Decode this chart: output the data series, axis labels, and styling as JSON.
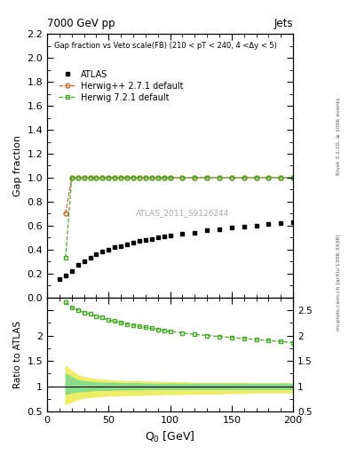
{
  "title_left": "7000 GeV pp",
  "title_right": "Jets",
  "main_title": "Gap fraction vs Veto scale(FB) (210 < pT < 240, 4 <Δy < 5)",
  "xlabel": "Q$_0$ [GeV]",
  "ylabel_main": "Gap fraction",
  "ylabel_ratio": "Ratio to ATLAS",
  "right_label_top": "Rivet 3.1.10, ≥ 100k events",
  "right_label_bottom": "mcplots.cern.ch [arXiv:1306.3436]",
  "watermark": "ATLAS_2011_S9126244",
  "xlim": [
    0,
    200
  ],
  "ylim_main": [
    0,
    2.2
  ],
  "ylim_ratio": [
    0.5,
    2.75
  ],
  "atlas_x": [
    10,
    15,
    20,
    25,
    30,
    35,
    40,
    45,
    50,
    55,
    60,
    65,
    70,
    75,
    80,
    85,
    90,
    95,
    100,
    110,
    120,
    130,
    140,
    150,
    160,
    170,
    180,
    190,
    200
  ],
  "atlas_y": [
    0.15,
    0.18,
    0.22,
    0.27,
    0.3,
    0.33,
    0.36,
    0.38,
    0.4,
    0.42,
    0.43,
    0.44,
    0.46,
    0.47,
    0.48,
    0.49,
    0.5,
    0.51,
    0.52,
    0.53,
    0.54,
    0.56,
    0.57,
    0.58,
    0.59,
    0.6,
    0.61,
    0.62,
    0.63
  ],
  "herwig_pp_x": [
    15,
    20,
    25,
    30,
    35,
    40,
    45,
    50,
    55,
    60,
    65,
    70,
    75,
    80,
    85,
    90,
    95,
    100,
    110,
    120,
    130,
    140,
    150,
    160,
    170,
    180,
    190,
    200
  ],
  "herwig_pp_y": [
    0.7,
    1.0,
    1.0,
    1.0,
    1.0,
    1.0,
    1.0,
    1.0,
    1.0,
    1.0,
    1.0,
    1.0,
    1.0,
    1.0,
    1.0,
    1.0,
    1.0,
    1.0,
    1.0,
    1.0,
    1.0,
    1.0,
    1.0,
    1.0,
    1.0,
    1.0,
    1.0,
    1.0
  ],
  "herwig7_x": [
    15,
    20,
    25,
    30,
    35,
    40,
    45,
    50,
    55,
    60,
    65,
    70,
    75,
    80,
    85,
    90,
    95,
    100,
    110,
    120,
    130,
    140,
    150,
    160,
    170,
    180,
    190,
    200
  ],
  "herwig7_y": [
    0.33,
    1.0,
    1.0,
    1.0,
    1.0,
    1.0,
    1.0,
    1.0,
    1.0,
    1.0,
    1.0,
    1.0,
    1.0,
    1.0,
    1.0,
    1.0,
    1.0,
    1.0,
    1.0,
    1.0,
    1.0,
    1.0,
    1.0,
    1.0,
    1.0,
    1.0,
    1.0,
    1.0
  ],
  "ratio_herwig7_x": [
    15,
    20,
    25,
    30,
    35,
    40,
    45,
    50,
    55,
    60,
    65,
    70,
    75,
    80,
    85,
    90,
    95,
    100,
    110,
    120,
    130,
    140,
    150,
    160,
    170,
    180,
    190,
    200
  ],
  "ratio_herwig7_y": [
    2.65,
    2.55,
    2.5,
    2.45,
    2.42,
    2.38,
    2.35,
    2.3,
    2.28,
    2.25,
    2.22,
    2.2,
    2.18,
    2.16,
    2.14,
    2.12,
    2.1,
    2.08,
    2.05,
    2.02,
    2.0,
    1.98,
    1.96,
    1.94,
    1.92,
    1.9,
    1.88,
    1.86
  ],
  "green_band_x": [
    15,
    20,
    25,
    30,
    35,
    40,
    45,
    50,
    55,
    60,
    65,
    70,
    75,
    80,
    85,
    90,
    95,
    100,
    110,
    120,
    130,
    140,
    150,
    160,
    170,
    180,
    190,
    200
  ],
  "green_band_upper": [
    1.25,
    1.18,
    1.12,
    1.1,
    1.09,
    1.08,
    1.07,
    1.07,
    1.07,
    1.06,
    1.06,
    1.06,
    1.06,
    1.05,
    1.05,
    1.05,
    1.05,
    1.05,
    1.05,
    1.05,
    1.05,
    1.05,
    1.05,
    1.05,
    1.05,
    1.05,
    1.05,
    1.05
  ],
  "green_band_lower": [
    0.85,
    0.88,
    0.9,
    0.91,
    0.92,
    0.93,
    0.93,
    0.93,
    0.94,
    0.94,
    0.94,
    0.94,
    0.94,
    0.95,
    0.95,
    0.95,
    0.95,
    0.95,
    0.95,
    0.95,
    0.95,
    0.95,
    0.95,
    0.95,
    0.95,
    0.95,
    0.95,
    0.95
  ],
  "yellow_band_x": [
    15,
    20,
    25,
    30,
    35,
    40,
    45,
    50,
    55,
    60,
    65,
    70,
    75,
    80,
    85,
    90,
    95,
    100,
    110,
    120,
    130,
    140,
    150,
    160,
    170,
    180,
    190,
    200
  ],
  "yellow_band_upper": [
    1.4,
    1.3,
    1.22,
    1.18,
    1.16,
    1.14,
    1.13,
    1.12,
    1.11,
    1.11,
    1.1,
    1.1,
    1.1,
    1.09,
    1.09,
    1.09,
    1.08,
    1.08,
    1.08,
    1.07,
    1.07,
    1.07,
    1.07,
    1.07,
    1.06,
    1.06,
    1.06,
    1.06
  ],
  "yellow_band_lower": [
    0.65,
    0.7,
    0.75,
    0.78,
    0.79,
    0.8,
    0.81,
    0.82,
    0.82,
    0.83,
    0.83,
    0.83,
    0.83,
    0.84,
    0.84,
    0.84,
    0.85,
    0.85,
    0.85,
    0.86,
    0.86,
    0.86,
    0.87,
    0.87,
    0.88,
    0.88,
    0.88,
    0.88
  ],
  "color_atlas": "#000000",
  "color_herwig_pp": "#cc6622",
  "color_herwig7": "#44aa22",
  "color_green_band": "#88dd88",
  "color_yellow_band": "#eeee66"
}
